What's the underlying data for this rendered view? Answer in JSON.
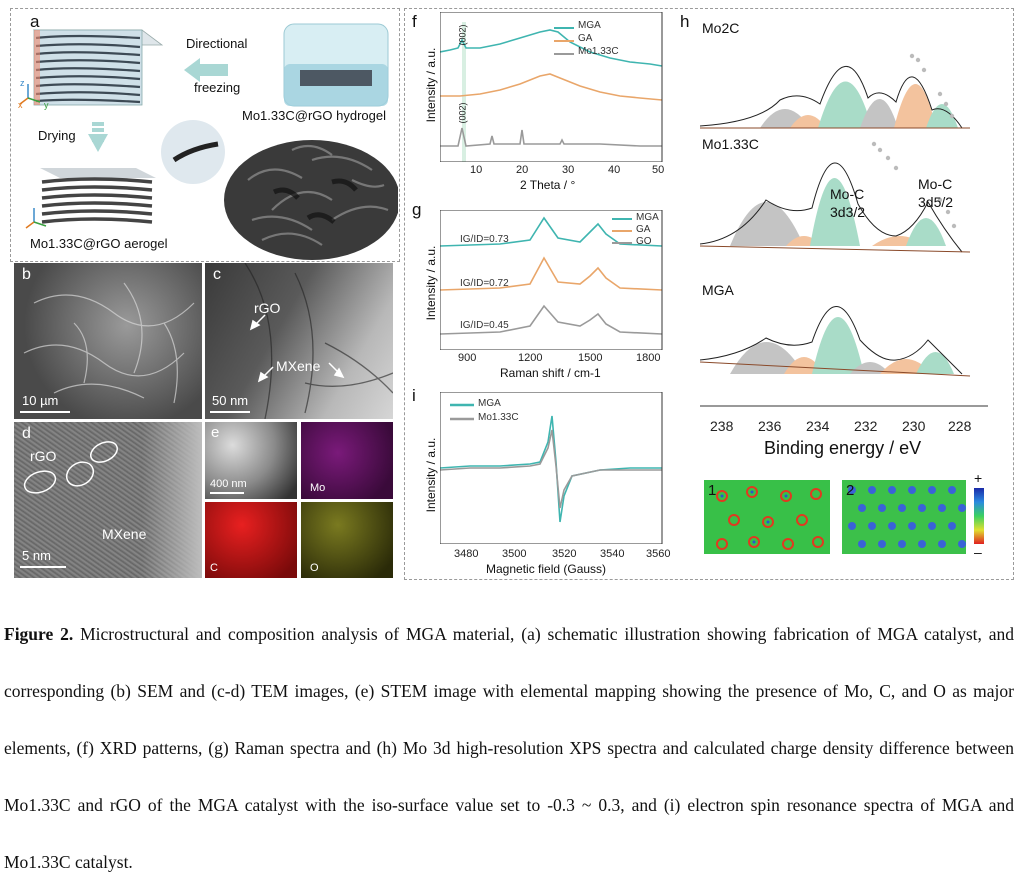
{
  "panels": {
    "a": {
      "label": "a",
      "directional": "Directional",
      "freezing": "freezing",
      "hydrogel_label": "Mo1.33C@rGO hydrogel",
      "drying": "Drying",
      "aerogel_label": "Mo1.33C@rGO aerogel",
      "axes": {
        "x": "x",
        "y": "y",
        "z": "z"
      }
    },
    "b": {
      "label": "b",
      "scale": "10 µm"
    },
    "c": {
      "label": "c",
      "rgo": "rGO",
      "mxene": "MXene",
      "scale": "50 nm"
    },
    "d": {
      "label": "d",
      "rgo": "rGO",
      "mxene": "MXene",
      "scale": "5 nm"
    },
    "e": {
      "label": "e",
      "scale": "400 nm",
      "maps": [
        "Mo",
        "C",
        "O"
      ]
    },
    "f": {
      "label": "f",
      "ylabel": "Intensity / a.u.",
      "xlabel": "2 Theta / °",
      "peak": "(002)",
      "ticks": [
        "10",
        "20",
        "30",
        "40",
        "50"
      ],
      "legend": [
        "MGA",
        "GA",
        "Mo1.33C"
      ]
    },
    "g": {
      "label": "g",
      "ylabel": "Intensity / a.u.",
      "xlabel": "Raman shift / cm-1",
      "ticks": [
        "900",
        "1200",
        "1500",
        "1800"
      ],
      "legend": [
        "MGA",
        "GA",
        "GO"
      ],
      "ratios": [
        "IG/ID=0.73",
        "IG/ID=0.72",
        "IG/ID=0.45"
      ]
    },
    "h": {
      "label": "h",
      "sections": [
        "Mo2C",
        "Mo1.33C",
        "MGA"
      ],
      "peak1": "Mo-C",
      "peak1b": "3d3/2",
      "peak2": "Mo-C",
      "peak2b": "3d5/2",
      "xlabel": "Binding energy / eV",
      "ticks": [
        "238",
        "236",
        "234",
        "232",
        "230",
        "228"
      ],
      "maps": [
        "1",
        "2"
      ],
      "scale_plus": "+",
      "scale_minus": "–"
    },
    "i": {
      "label": "i",
      "ylabel": "Intensity / a.u.",
      "xlabel": "Magnetic field (Gauss)",
      "ticks": [
        "3480",
        "3500",
        "3520",
        "3540",
        "3560"
      ],
      "legend": [
        "MGA",
        "Mo1.33C"
      ]
    }
  },
  "colors": {
    "teal": "#3fb5b0",
    "orange": "#e9a66a",
    "gray": "#9a9a9a",
    "green_fill": "#a9dcc8",
    "orange_fill": "#f3c39e",
    "gray_fill": "#c4c4c4"
  },
  "caption": {
    "figure_label": "Figure 2.",
    "text": "Microstructural and composition analysis of MGA material, (a) schematic illustration showing fabrication of MGA catalyst, and corresponding (b) SEM and (c-d) TEM images, (e) STEM image with elemental mapping showing the presence of Mo, C, and O as major elements, (f) XRD patterns, (g) Raman spectra and (h) Mo 3d high-resolution XPS spectra and calculated charge density difference between Mo1.33C and rGO of the MGA catalyst with the iso-surface value set to -0.3 ~ 0.3, and (i) electron spin resonance spectra of MGA and Mo1.33C catalyst."
  }
}
